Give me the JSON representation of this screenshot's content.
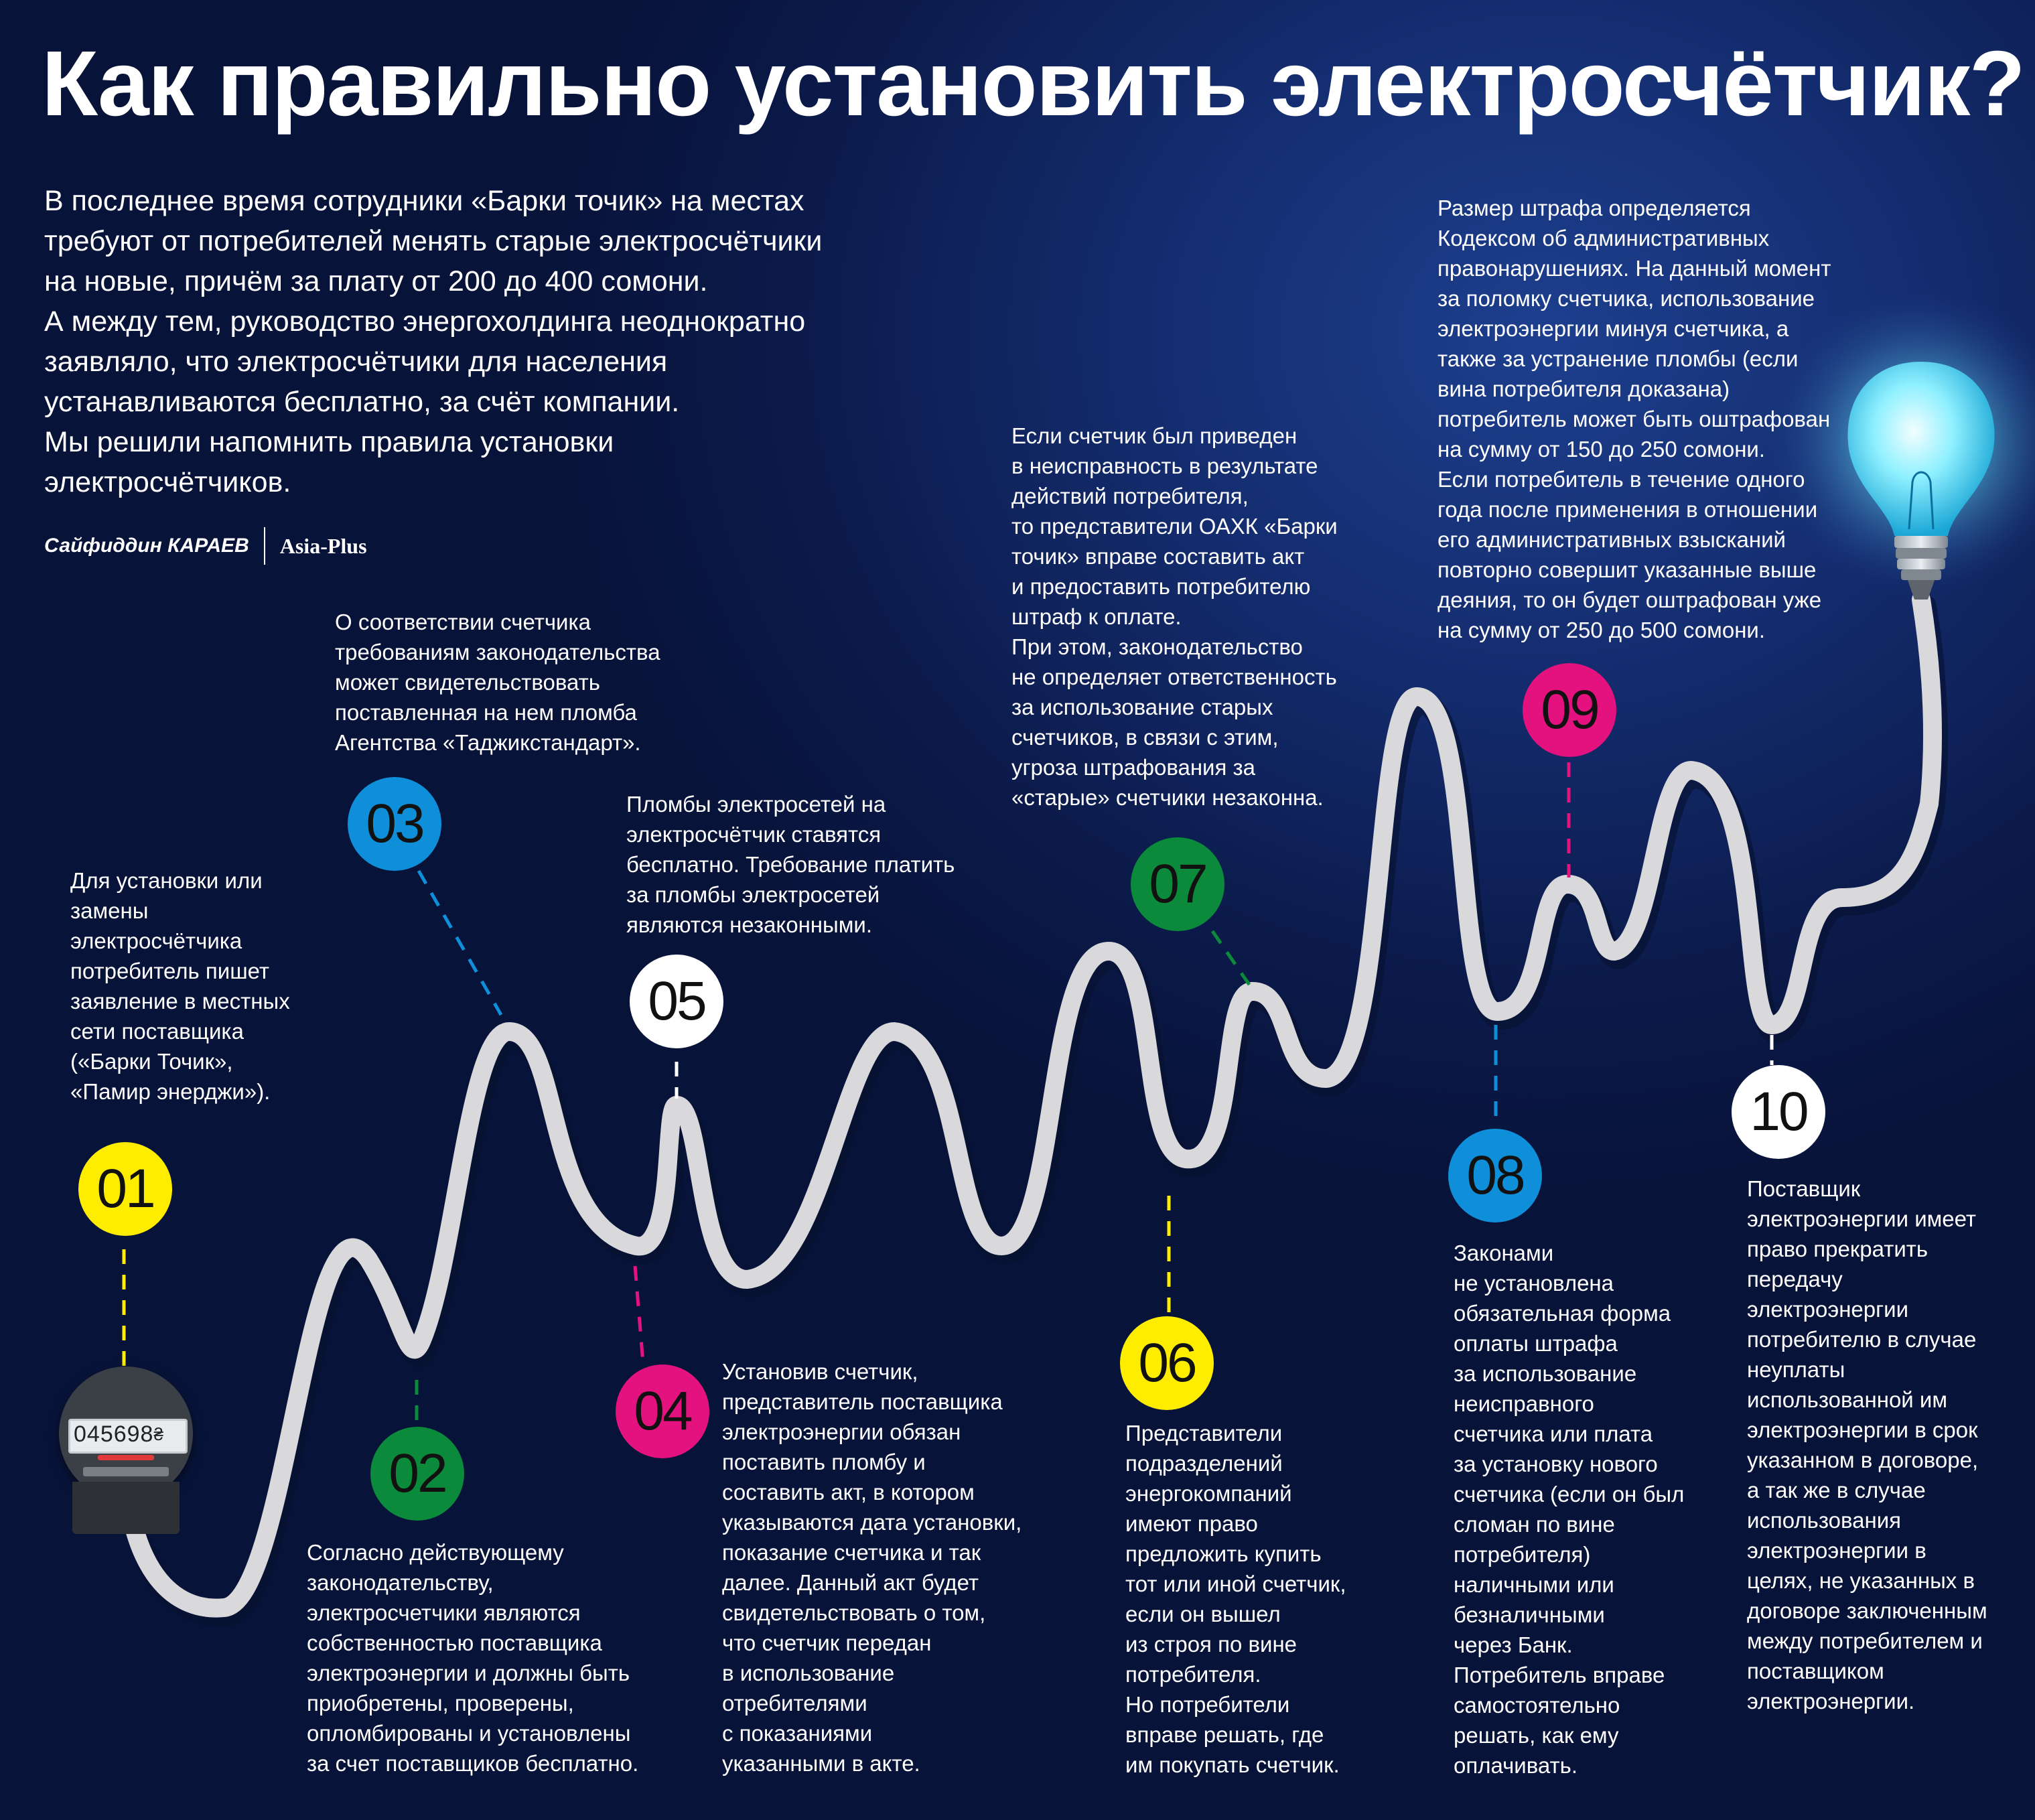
{
  "title": "Как правильно установить электросчётчик?",
  "intro": "В  последнее время сотрудники «Барки точик» на местах\nтребуют от потребителей менять старые электросчётчики\nна новые, причём за плату от 200 до 400 сомони.\nА между тем, руководство энергохолдинга неоднократно\nзаявляло, что электросчётчики для населения\nустанавливаются бесплатно, за счёт компании.\nМы решили напомнить правила установки\nэлектросчётчиков.",
  "credit": {
    "author": "Сайфиддин КАРАЕВ",
    "source": "Asia-Plus"
  },
  "meter": {
    "reading": "045698",
    "unit_glyph": "₴"
  },
  "colors": {
    "background": "#0b1a4a",
    "wire": "#d9d9dc",
    "yellow": "#ffed00",
    "green": "#0c8a3b",
    "blue": "#0f8fd9",
    "magenta": "#e3127f",
    "white": "#ffffff",
    "bulb_glow": "#6ee6ff"
  },
  "steps": [
    {
      "num": "01",
      "color": "yellow",
      "text": "Для установки или\nзамены\nэлектросчётчика\nпотребитель пишет\nзаявление в местных\nсети поставщика\n(«Барки Точик»,\n«Памир энерджи»)."
    },
    {
      "num": "02",
      "color": "green",
      "text": "Согласно действующему\nзаконодательству,\nэлектросчетчики являются\nсобственностью поставщика\nэлектроэнергии и должны быть\nприобретены, проверены,\nопломбированы и установлены\nза счет поставщиков бесплатно."
    },
    {
      "num": "03",
      "color": "blue",
      "text": "О соответствии счетчика\nтребованиям законодательства\nможет свидетельствовать\nпоставленная на нем пломба\nАгентства «Таджикстандарт»."
    },
    {
      "num": "04",
      "color": "magenta",
      "text": "Установив счетчик,\nпредставитель поставщика\nэлектроэнергии обязан\nпоставить пломбу и\nсоставить акт, в котором\nуказываются дата установки,\nпоказание счетчика и так\nдалее. Данный акт будет\nсвидетельствовать о том,\nчто счетчик передан\nв использование\nотребителями\nс показаниями\nуказанными в акте."
    },
    {
      "num": "05",
      "color": "white",
      "text": "Пломбы электросетей на\nэлектросчётчик ставятся\nбесплатно. Требование платить\nза пломбы электросетей\nявляются незаконными."
    },
    {
      "num": "06",
      "color": "yellow",
      "text": "Представители\nподразделений\nэнергокомпаний\nимеют право\nпредложить купить\n тот или иной счетчик,\nесли он вышел\nиз строя по вине\nпотребителя.\nНо потребители\nвправе решать, где\nим покупать счетчик."
    },
    {
      "num": "07",
      "color": "green",
      "text": "Если счетчик был приведен\nв неисправность в результате\nдействий потребителя,\nто представители ОАХК «Барки\nточик» вправе составить акт\nи предоставить потребителю\nштраф к оплате.\nПри этом, законодательство\nне определяет ответственность\nза использование старых\nсчетчиков, в связи с этим,\nугроза штрафования за\n«старые» счетчики незаконна."
    },
    {
      "num": "08",
      "color": "blue",
      "text": "Законами\nне установлена\nобязательная форма\nоплаты штрафа\nза использование\nнеисправного\nсчетчика или плата\nза установку нового\nсчетчика (если он был\nсломан по вине\nпотребителя)\nналичными или\nбезналичными\nчерез Банк.\nПотребитель вправе\nсамостоятельно\nрешать, как ему\nоплачивать."
    },
    {
      "num": "09",
      "color": "magenta",
      "text": "Размер штрафа определяется\nКодексом об административных\nправонарушениях. На данный момент\nза поломку счетчика, использование\nэлектроэнергии минуя счетчика, а\nтакже за устранение пломбы (если\nвина потребителя доказана)\nпотребитель может быть оштрафован\nна сумму от 150 до 250 сомони.\nЕсли потребитель в течение одного\nгода после применения в отношении\nего административных взысканий\nповторно совершит указанные выше\nдеяния, то он будет оштрафован уже\nна сумму от 250 до 500 сомони."
    },
    {
      "num": "10",
      "color": "white",
      "text": "Поставщик\nэлектроэнергии имеет\nправо прекратить\nпередачу\nэлектроэнергии\nпотребителю в случае\nнеуплаты\nиспользованной им\nэлектроэнергии в срок\nуказанном в договоре,\nа так же в случае\nиспользования\nэлектроэнергии в\nцелях, не указанных в\nдоговоре заключенным\nмежду потребителем и\nпоставщиком\nэлектроэнергии."
    }
  ]
}
